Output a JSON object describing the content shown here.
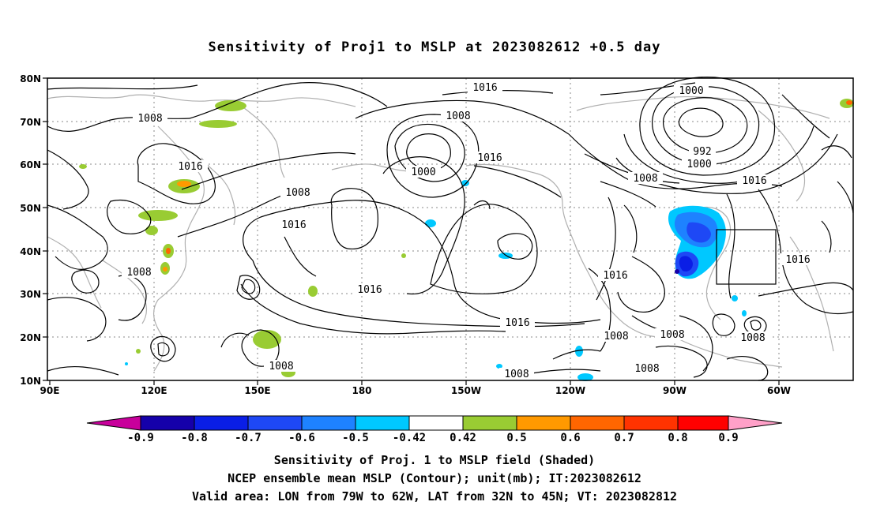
{
  "title": "Sensitivity of Proj1 to MSLP at 2023082612 +0.5 day",
  "lat_labels": [
    "80N",
    "70N",
    "60N",
    "50N",
    "40N",
    "30N",
    "20N",
    "10N"
  ],
  "lon_labels": [
    "90E",
    "120E",
    "150E",
    "180",
    "150W",
    "120W",
    "90W",
    "60W"
  ],
  "contour_labels": [
    {
      "text": "1016"
    },
    {
      "text": "1008"
    },
    {
      "text": "1000"
    },
    {
      "text": "992"
    },
    {
      "text": "1000"
    },
    {
      "text": "1008"
    },
    {
      "text": "1016"
    },
    {
      "text": "1016"
    },
    {
      "text": "1008"
    },
    {
      "text": "1016"
    },
    {
      "text": "1000"
    },
    {
      "text": "1008"
    },
    {
      "text": "1016"
    },
    {
      "text": "1008"
    },
    {
      "text": "1016"
    },
    {
      "text": "1016"
    },
    {
      "text": "1016"
    },
    {
      "text": "1008"
    },
    {
      "text": "1008"
    },
    {
      "text": "1008"
    },
    {
      "text": "1008"
    },
    {
      "text": "1008"
    },
    {
      "text": "1008"
    }
  ],
  "colorbar": {
    "colors": [
      "#c8009b",
      "#1500aa",
      "#0a1ee6",
      "#1e48f5",
      "#1e82ff",
      "#00c8ff",
      "#ffffff",
      "#99cc33",
      "#ff9900",
      "#ff6600",
      "#ff3300",
      "#ff0000",
      "#ffa0c8"
    ],
    "labels": [
      "-0.9",
      "-0.8",
      "-0.7",
      "-0.6",
      "-0.5",
      "-0.42",
      "0.42",
      "0.5",
      "0.6",
      "0.7",
      "0.8",
      "0.9"
    ]
  },
  "captions": {
    "line1": "Sensitivity of Proj. 1 to MSLP field (Shaded)",
    "line2": "NCEP ensemble mean MSLP (Contour); unit(mb); IT:2023082612",
    "line3": "Valid area: LON from 79W to 62W, LAT from 32N to 45N; VT: 2023082812"
  }
}
